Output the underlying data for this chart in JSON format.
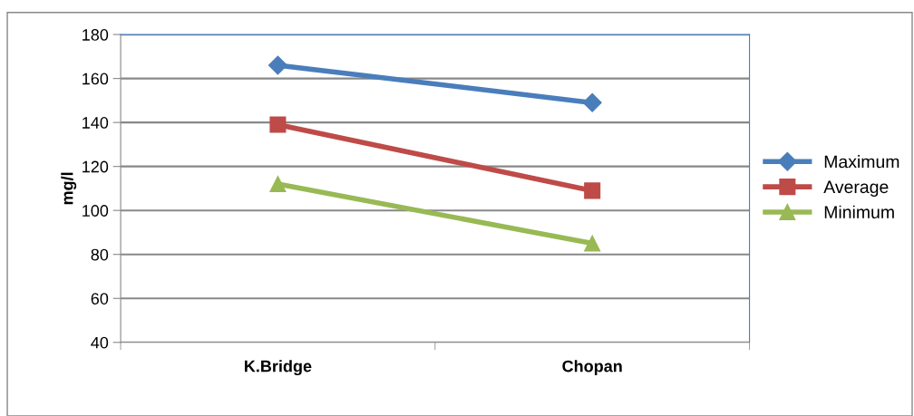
{
  "chart_data": {
    "type": "line",
    "ylabel": "mg/l",
    "categories": [
      "K.Bridge",
      "Chopan"
    ],
    "series": [
      {
        "name": "Maximum",
        "color": "#4a7ebb",
        "marker": "diamond",
        "values": [
          166,
          149
        ]
      },
      {
        "name": "Average",
        "color": "#be4b48",
        "marker": "square",
        "values": [
          139,
          109
        ]
      },
      {
        "name": "Minimum",
        "color": "#98b954",
        "marker": "triangle",
        "values": [
          112,
          85
        ]
      }
    ],
    "ylim": [
      40,
      180
    ],
    "yticks": [
      40,
      60,
      80,
      100,
      120,
      140,
      160,
      180
    ],
    "grid": "y",
    "legend": "right"
  }
}
